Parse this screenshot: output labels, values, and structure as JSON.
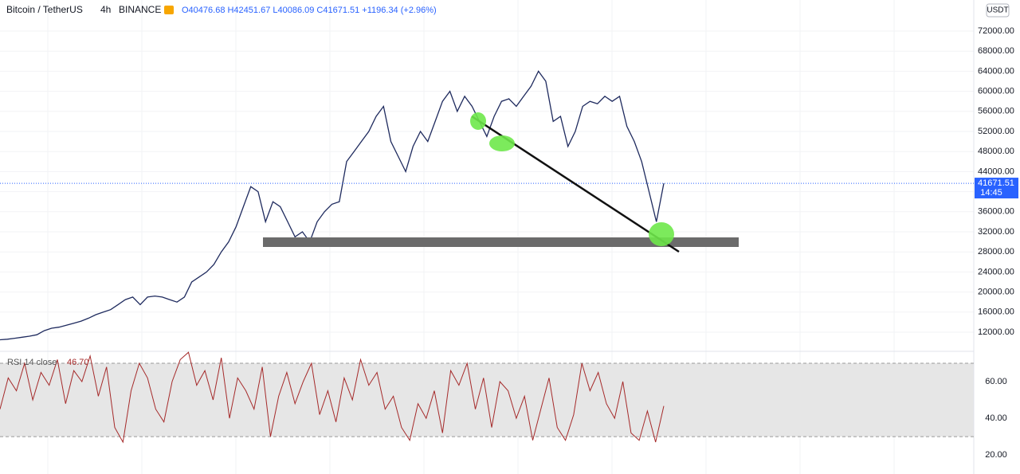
{
  "header": {
    "symbol": "Bitcoin / TetherUS",
    "interval": "4h",
    "exchange": "BINANCE",
    "ohlc": "O40476.68 H42451.67 L40086.09 C41671.51 +1196.34 (+2.96%)"
  },
  "chart_data": [
    {
      "type": "line",
      "color": "#1e2a5e",
      "values": [
        10500,
        10600,
        10800,
        11000,
        11200,
        11500,
        12300,
        12800,
        13000,
        13400,
        13800,
        14200,
        14800,
        15500,
        16000,
        16500,
        17500,
        18500,
        19000,
        17500,
        19000,
        19200,
        19000,
        18500,
        18000,
        19000,
        22000,
        23000,
        24000,
        25500,
        28000,
        30000,
        33000,
        37000,
        41000,
        40000,
        34000,
        38000,
        37000,
        34000,
        31000,
        32000,
        30000,
        34000,
        36000,
        37500,
        38000,
        46000,
        48000,
        50000,
        52000,
        55000,
        57000,
        50000,
        47000,
        44000,
        49000,
        52000,
        50000,
        54000,
        58000,
        60000,
        56000,
        59000,
        57000,
        54000,
        51000,
        55000,
        58000,
        58500,
        57000,
        59000,
        61000,
        64000,
        62000,
        54000,
        55000,
        49000,
        52000,
        57000,
        58000,
        57500,
        59000,
        58000,
        59000,
        53000,
        50000,
        46000,
        40000,
        34000,
        41671.51
      ],
      "ylim": [
        8350,
        78190
      ],
      "yticks": [
        {
          "value": 12000,
          "label": "12000.00"
        },
        {
          "value": 16000,
          "label": "16000.00"
        },
        {
          "value": 20000,
          "label": "20000.00"
        },
        {
          "value": 24000,
          "label": "24000.00"
        },
        {
          "value": 28000,
          "label": "28000.00"
        },
        {
          "value": 32000,
          "label": "32000.00"
        },
        {
          "value": 36000,
          "label": "36000.00"
        },
        {
          "value": 40000,
          "label": "40000.00"
        },
        {
          "value": 44000,
          "label": "44000.00"
        },
        {
          "value": 48000,
          "label": "48000.00"
        },
        {
          "value": 52000,
          "label": "52000.00"
        },
        {
          "value": 56000,
          "label": "56000.00"
        },
        {
          "value": 60000,
          "label": "60000.00"
        },
        {
          "value": 64000,
          "label": "64000.00"
        },
        {
          "value": 68000,
          "label": "68000.00"
        },
        {
          "value": 72000,
          "label": "72000.00"
        }
      ],
      "last_price": 41671.51,
      "countdown": "14:45",
      "currency": "USDT",
      "grid": true
    },
    {
      "type": "line",
      "name": "RSI 14 close",
      "legend_value": "46.70",
      "color": "#a52a2a",
      "values": [
        45,
        62,
        55,
        70,
        50,
        65,
        58,
        72,
        48,
        66,
        60,
        74,
        52,
        68,
        35,
        27,
        55,
        70,
        62,
        45,
        38,
        60,
        72,
        76,
        58,
        66,
        50,
        73,
        40,
        62,
        55,
        45,
        68,
        30,
        52,
        65,
        48,
        60,
        70,
        42,
        55,
        38,
        62,
        50,
        72,
        58,
        65,
        45,
        52,
        35,
        28,
        48,
        40,
        55,
        32,
        66,
        58,
        70,
        45,
        62,
        35,
        60,
        55,
        40,
        52,
        28,
        45,
        62,
        35,
        28,
        42,
        70,
        55,
        65,
        48,
        40,
        60,
        32,
        28,
        44,
        27,
        46.7
      ],
      "ylim": [
        9.6,
        76.1
      ],
      "yticks": [
        {
          "value": 20,
          "label": "20.00"
        },
        {
          "value": 40,
          "label": "40.00"
        },
        {
          "value": 60,
          "label": "60.00"
        }
      ],
      "band": [
        30,
        70
      ]
    }
  ]
}
